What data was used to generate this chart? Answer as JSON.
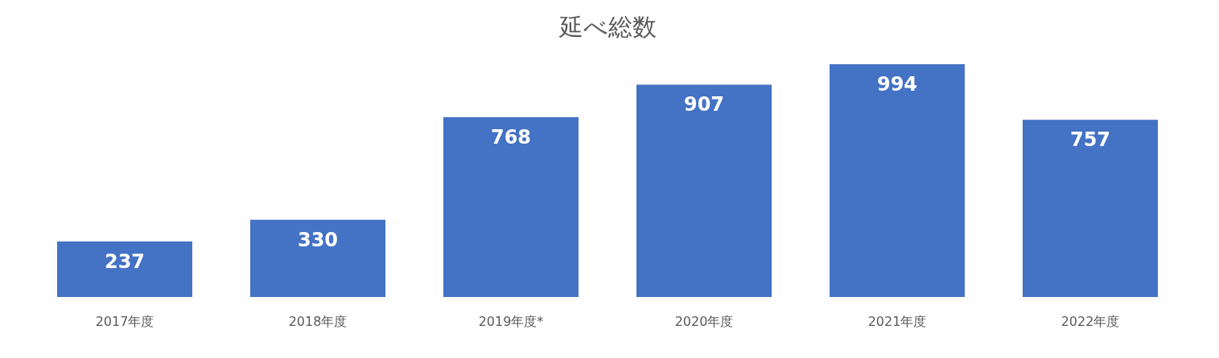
{
  "chart_data": {
    "type": "bar",
    "title": "延べ総数",
    "categories": [
      "2017年度",
      "2018年度",
      "2019年度*",
      "2020年度",
      "2021年度",
      "2022年度"
    ],
    "values": [
      237,
      330,
      768,
      907,
      994,
      757
    ],
    "color": "#4472c4",
    "data_labels": true,
    "grid": false
  }
}
